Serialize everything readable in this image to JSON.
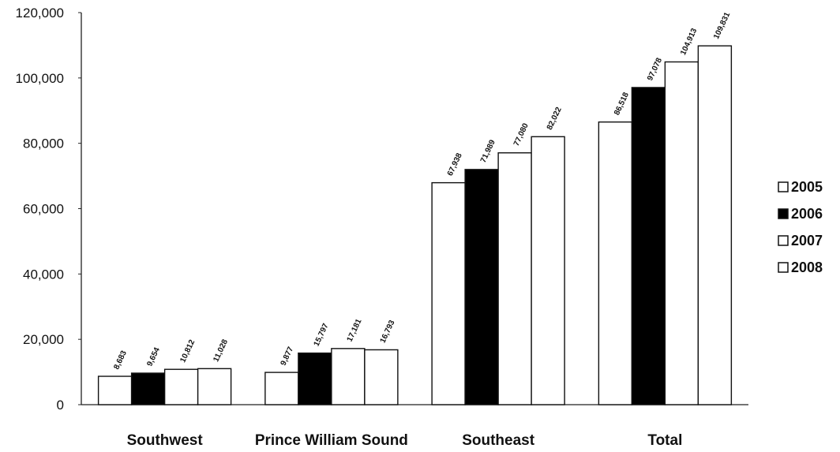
{
  "chart_data": {
    "type": "bar",
    "title": "",
    "xlabel": "",
    "ylabel": "",
    "ylim": [
      0,
      120000
    ],
    "yticks": [
      0,
      20000,
      40000,
      60000,
      80000,
      100000,
      120000
    ],
    "ytick_labels": [
      "0",
      "20,000",
      "40,000",
      "60,000",
      "80,000",
      "100,000",
      "120,000"
    ],
    "categories": [
      "Southwest",
      "Prince William Sound",
      "Southeast",
      "Total"
    ],
    "series": [
      {
        "name": "2005",
        "color": "#ffffff",
        "values": [
          8683,
          9877,
          67938,
          86518
        ],
        "labels": [
          "8,683",
          "9,877",
          "67,938",
          "86,518"
        ]
      },
      {
        "name": "2006",
        "color": "#000000",
        "values": [
          9654,
          15797,
          71989,
          97078
        ],
        "labels": [
          "9,654",
          "15,797",
          "71,989",
          "97,078"
        ]
      },
      {
        "name": "2007",
        "color": "#ffffff",
        "values": [
          10812,
          17181,
          77080,
          104913
        ],
        "labels": [
          "10,812",
          "17,181",
          "77,080",
          "104,913"
        ]
      },
      {
        "name": "2008",
        "color": "#ffffff",
        "values": [
          11028,
          16793,
          82022,
          109831
        ],
        "labels": [
          "11,028",
          "16,793",
          "82,022",
          "109,831"
        ]
      }
    ],
    "grid": false,
    "legend_position": "right"
  }
}
